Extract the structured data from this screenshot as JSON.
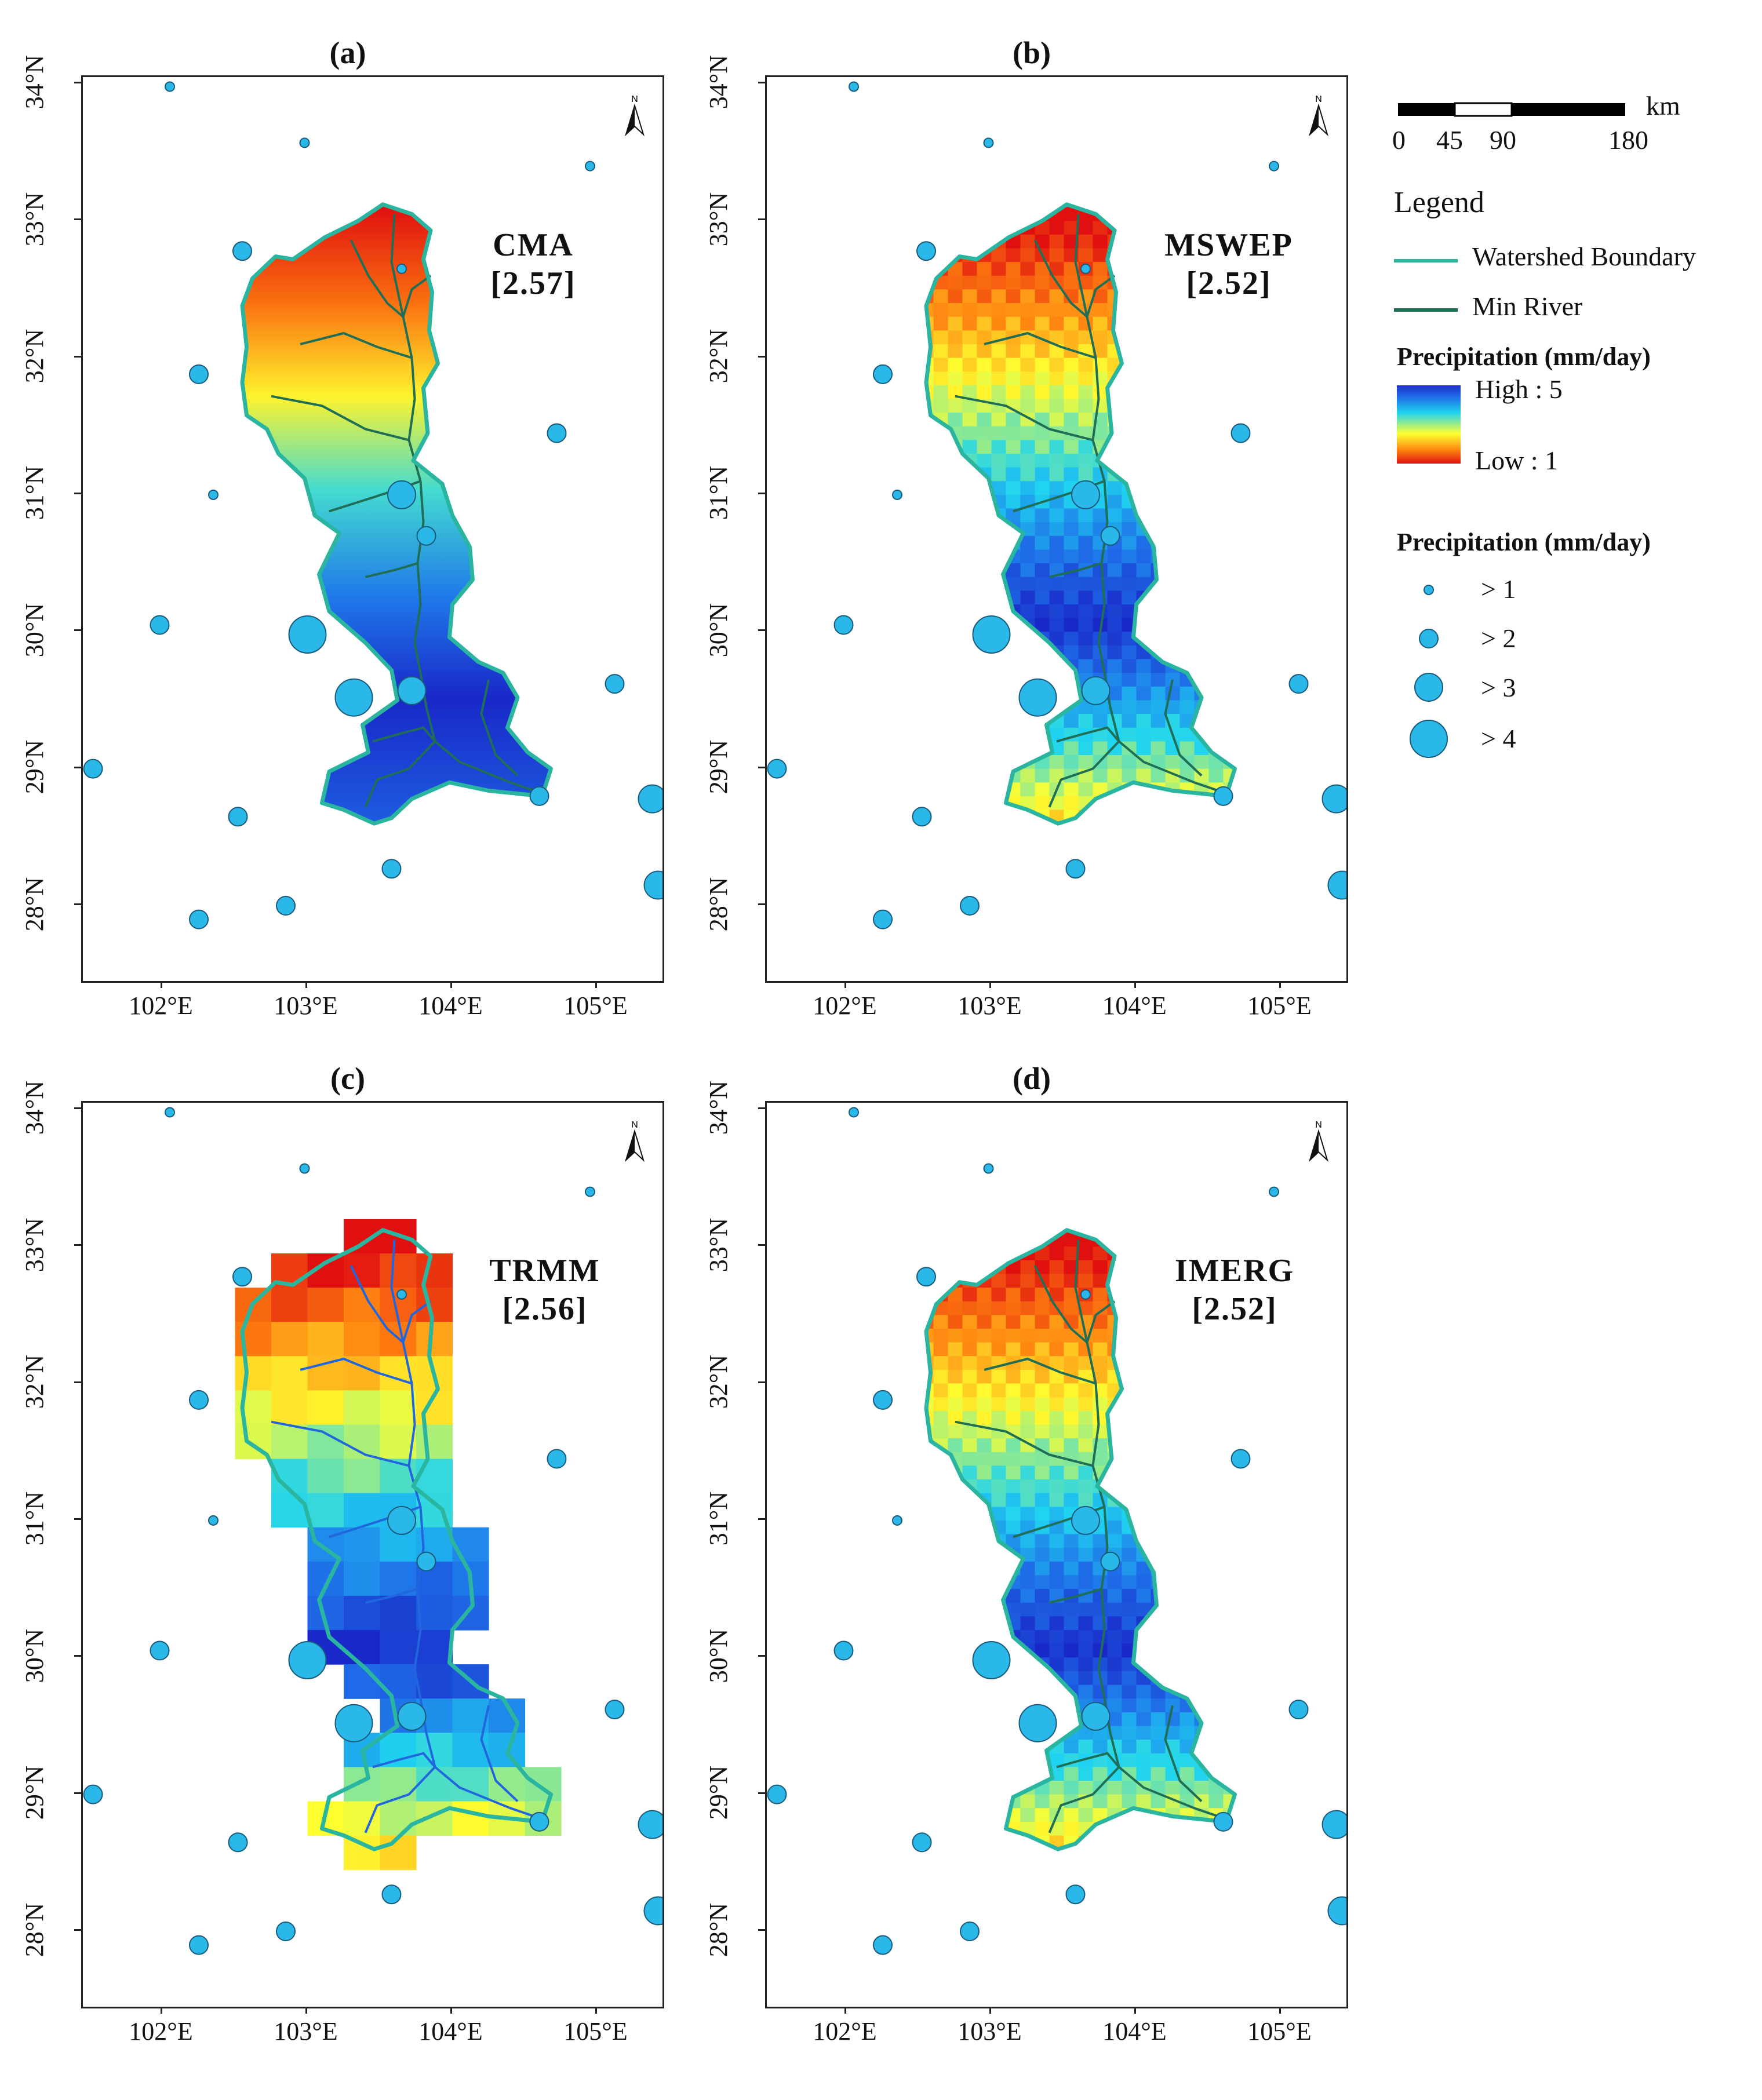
{
  "panels": [
    {
      "id": "a",
      "title": "(a)",
      "source": "CMA",
      "mean": "[2.57]",
      "render": "smooth"
    },
    {
      "id": "b",
      "title": "(b)",
      "source": "MSWEP",
      "mean": "[2.52]",
      "render": "grid_fine"
    },
    {
      "id": "c",
      "title": "(c)",
      "source": "TRMM",
      "mean": "[2.56]",
      "render": "grid_coarse"
    },
    {
      "id": "d",
      "title": "(d)",
      "source": "IMERG",
      "mean": "[2.52]",
      "render": "grid_fine"
    }
  ],
  "axes": {
    "lat_ticks": [
      "34°N",
      "33°N",
      "32°N",
      "31°N",
      "30°N",
      "29°N",
      "28°N"
    ],
    "lon_ticks": [
      "102°E",
      "103°E",
      "104°E",
      "105°E"
    ]
  },
  "north_arrow": "N",
  "scale_bar": {
    "unit": "km",
    "ticks": [
      "0",
      "45",
      "90",
      "180"
    ]
  },
  "legend": {
    "title": "Legend",
    "items": [
      {
        "label": "Watershed Boundary",
        "color": "#2ab5a0"
      },
      {
        "label": "Min River",
        "color": "#1f6e55"
      }
    ],
    "raster_title": "Precipitation (mm/day)",
    "raster_high": "High : 5",
    "raster_low": "Low : 1",
    "station_title": "Precipitation (mm/day)",
    "station_classes": [
      "> 1",
      "> 2",
      "> 3",
      "> 4"
    ]
  },
  "colors": {
    "station_fill": "#29b8e8",
    "station_stroke": "#1a5a7a",
    "boundary": "#2ab5a0",
    "river": "#1f6e55",
    "trmm_river": "#2266dd"
  }
}
